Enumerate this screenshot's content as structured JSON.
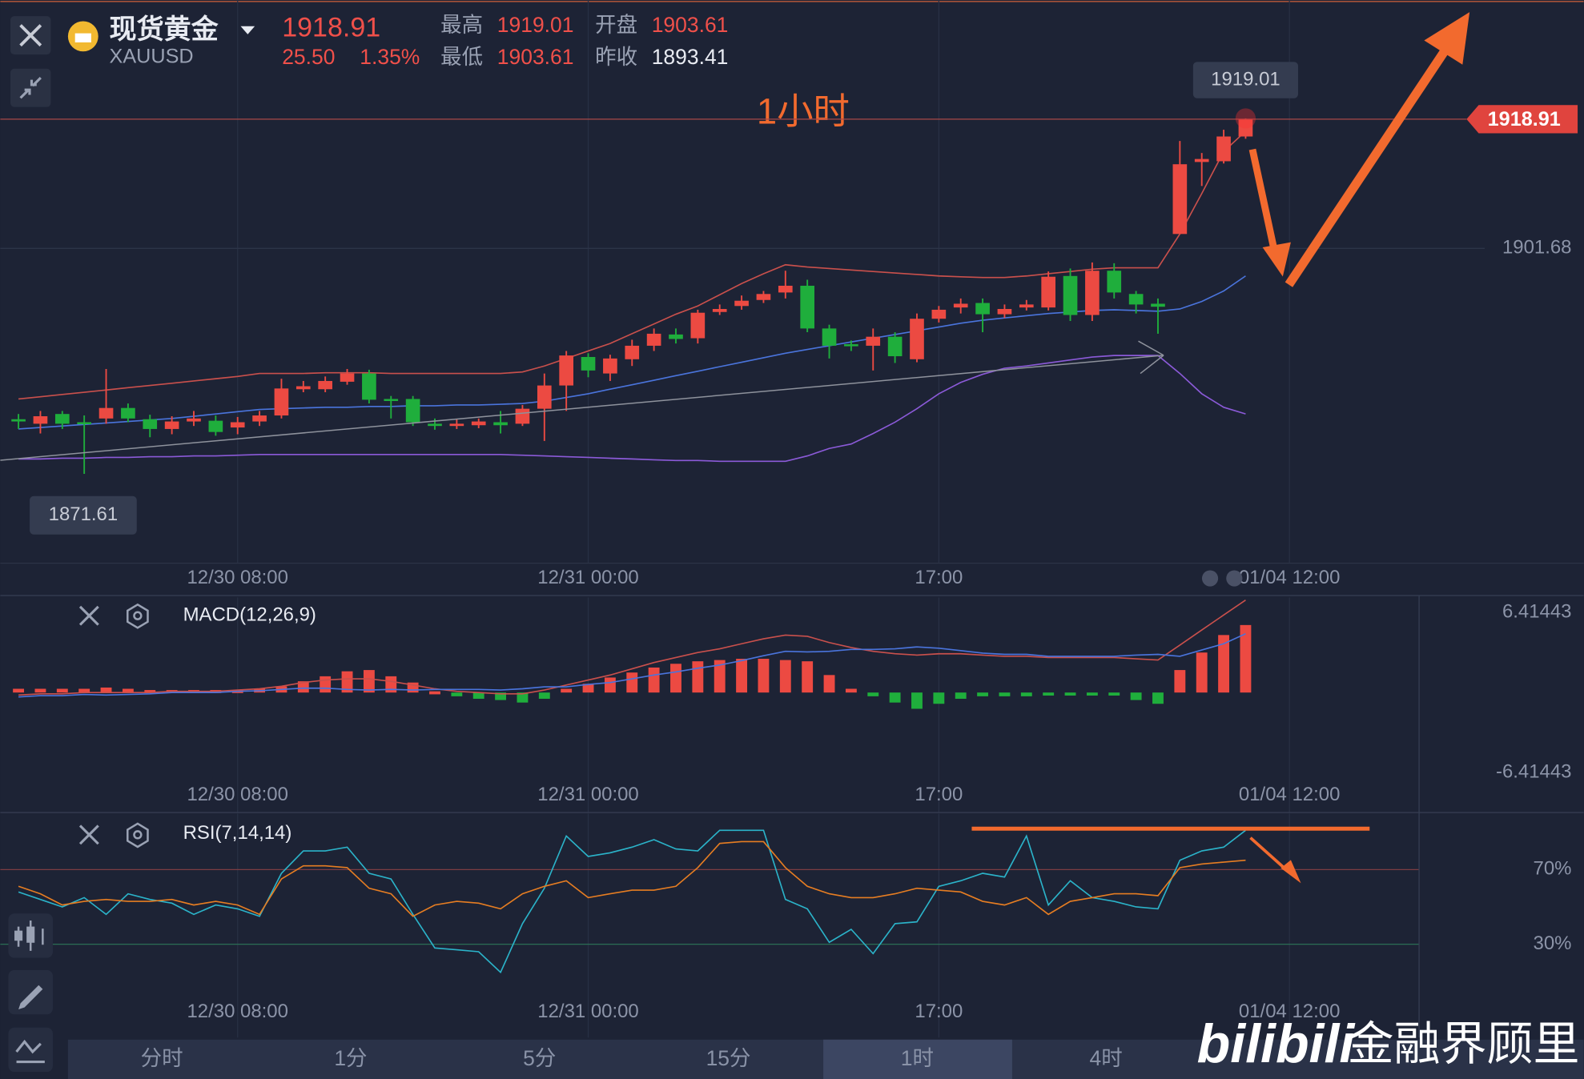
{
  "header": {
    "name": "现货黄金",
    "symbol": "XAUUSD",
    "price": "1918.91",
    "change": "25.50",
    "change_pct": "1.35%",
    "stats": [
      {
        "label": "最高",
        "value": "1919.01"
      },
      {
        "label": "开盘",
        "value": "1903.61"
      },
      {
        "label": "最低",
        "value": "1903.61"
      },
      {
        "label": "昨收",
        "value": "1893.41"
      }
    ]
  },
  "timeframes": [
    "分时",
    "1分",
    "5分",
    "15分",
    "1时",
    "4时"
  ],
  "active_timeframe": "1时",
  "watermark": {
    "logo": "bilibili",
    "text": "金融界顾里"
  },
  "chart_data": [
    {
      "type": "candlestick",
      "title": "1小时",
      "categories": [
        null,
        null,
        null,
        null,
        null,
        null,
        null,
        null,
        null,
        null,
        "12/30 08:00",
        null,
        null,
        null,
        null,
        null,
        null,
        null,
        null,
        null,
        null,
        null,
        null,
        null,
        null,
        null,
        "12/31 00:00",
        null,
        null,
        null,
        null,
        null,
        null,
        null,
        null,
        null,
        null,
        null,
        null,
        null,
        null,
        null,
        "17:00",
        null,
        null,
        null,
        null,
        null,
        null,
        null,
        null,
        null,
        null,
        null,
        null,
        null,
        null,
        null,
        "01/04 12:00",
        null,
        null
      ],
      "open": [
        1878.9,
        1878.3,
        1879.6,
        1878.5,
        1879.0,
        1880.4,
        1878.9,
        1877.6,
        1878.6,
        1878.7,
        1877.8,
        1878.6,
        1879.4,
        1882.9,
        1882.9,
        1883.9,
        1885.0,
        1881.6,
        1881.6,
        1878.3,
        1878.0,
        1878.1,
        1878.5,
        1878.3,
        1880.3,
        1883.4,
        1887.2,
        1885.0,
        1886.9,
        1888.7,
        1890.2,
        1889.7,
        1893.2,
        1894.0,
        1894.8,
        1895.8,
        1896.7,
        1891.0,
        1888.9,
        1888.7,
        1889.9,
        1886.9,
        1892.3,
        1893.8,
        1894.4,
        1892.9,
        1893.8,
        1893.8,
        1898.0,
        1892.8,
        1898.7,
        1895.6,
        1894.3,
        1903.6,
        1913.2,
        1913.3,
        1916.6,
        null,
        null,
        null,
        null
      ],
      "high": [
        1879.6,
        1880.0,
        1880.0,
        1879.4,
        1885.6,
        1881.0,
        1879.5,
        1879.3,
        1880.0,
        1879.4,
        1879.2,
        1880.0,
        1884.3,
        1884.0,
        1884.6,
        1885.6,
        1885.5,
        1882.0,
        1882.0,
        1879.0,
        1878.9,
        1879.0,
        1880.0,
        1880.8,
        1885.0,
        1888.0,
        1887.7,
        1887.5,
        1889.5,
        1891.0,
        1891.0,
        1893.5,
        1894.2,
        1895.4,
        1896.0,
        1898.7,
        1897.5,
        1891.5,
        1889.4,
        1891.0,
        1890.5,
        1893.0,
        1894.0,
        1895.0,
        1895.0,
        1894.2,
        1894.8,
        1898.6,
        1899.0,
        1899.8,
        1899.7,
        1896.0,
        1895.0,
        1916.0,
        1914.4,
        1917.5,
        1919.01,
        null,
        null,
        null,
        null
      ],
      "low": [
        1877.6,
        1877.0,
        1877.6,
        1871.61,
        1878.3,
        1878.5,
        1876.5,
        1876.9,
        1878.0,
        1876.7,
        1876.9,
        1878.0,
        1879.0,
        1882.5,
        1882.5,
        1883.5,
        1881.0,
        1879.0,
        1878.0,
        1877.5,
        1877.6,
        1877.7,
        1877.0,
        1878.0,
        1876.0,
        1880.0,
        1884.5,
        1884.0,
        1886.0,
        1888.0,
        1889.0,
        1889.0,
        1892.8,
        1893.5,
        1894.4,
        1895.0,
        1890.5,
        1887.0,
        1888.0,
        1885.4,
        1886.4,
        1886.5,
        1891.8,
        1893.0,
        1890.5,
        1892.4,
        1893.4,
        1893.4,
        1892.0,
        1892.0,
        1895.0,
        1893.0,
        1890.3,
        1903.6,
        1910.0,
        1913.0,
        1916.3,
        null,
        null,
        null,
        null
      ],
      "close": [
        1878.6,
        1879.3,
        1878.3,
        1878.3,
        1880.4,
        1879.0,
        1877.6,
        1878.6,
        1879.0,
        1877.2,
        1878.5,
        1879.4,
        1883.0,
        1883.3,
        1884.0,
        1885.0,
        1881.5,
        1881.4,
        1878.5,
        1878.0,
        1878.3,
        1878.6,
        1878.1,
        1880.3,
        1883.4,
        1887.4,
        1885.4,
        1887.0,
        1888.7,
        1890.3,
        1889.6,
        1893.1,
        1893.6,
        1894.7,
        1895.6,
        1896.7,
        1891.0,
        1888.7,
        1888.7,
        1889.9,
        1887.3,
        1892.3,
        1893.5,
        1894.3,
        1892.9,
        1893.6,
        1894.2,
        1897.9,
        1892.8,
        1898.7,
        1895.8,
        1894.2,
        1893.9,
        1912.9,
        1913.6,
        1916.6,
        1918.91,
        null,
        null,
        null,
        null
      ],
      "up_color": "#ec4a42",
      "down_color": "#1fae3c",
      "lines": [
        {
          "color": "#c9504c",
          "values": [
            1881.6,
            1881.9,
            1882.2,
            1882.5,
            1882.8,
            1883.1,
            1883.4,
            1883.7,
            1884.0,
            1884.3,
            1884.6,
            1885.0,
            1885.0,
            1885.0,
            1885.1,
            1885.1,
            1885.1,
            1885.0,
            1885.0,
            1885.0,
            1885.0,
            1885.0,
            1885.0,
            1885.2,
            1886.0,
            1887.0,
            1888.0,
            1889.0,
            1890.3,
            1891.6,
            1892.9,
            1894.0,
            1895.5,
            1897.0,
            1898.3,
            1899.5,
            1899.2,
            1899.0,
            1898.8,
            1898.6,
            1898.4,
            1898.2,
            1898.0,
            1897.9,
            1897.8,
            1897.8,
            1898.0,
            1898.3,
            1898.6,
            1898.9,
            1899.1,
            1899.1,
            1899.1,
            1903.6,
            1909.0,
            1914.6,
            1917.3,
            null,
            null,
            null,
            null
          ]
        },
        {
          "color": "#4a74dc",
          "values": [
            1877.6,
            1877.8,
            1878.0,
            1878.2,
            1878.4,
            1878.6,
            1878.8,
            1879.0,
            1879.3,
            1879.6,
            1879.9,
            1880.2,
            1880.3,
            1880.4,
            1880.5,
            1880.5,
            1880.6,
            1880.6,
            1880.7,
            1880.7,
            1880.8,
            1880.8,
            1880.9,
            1881.0,
            1881.3,
            1881.8,
            1882.3,
            1882.9,
            1883.5,
            1884.1,
            1884.7,
            1885.3,
            1885.9,
            1886.5,
            1887.1,
            1887.7,
            1888.2,
            1888.7,
            1889.2,
            1889.7,
            1890.2,
            1890.7,
            1891.2,
            1891.7,
            1892.1,
            1892.4,
            1892.7,
            1893.0,
            1893.2,
            1893.4,
            1893.5,
            1893.4,
            1893.3,
            1893.6,
            1894.6,
            1896.0,
            1898.0,
            null,
            null,
            null,
            null
          ]
        },
        {
          "color": "#8b5ad8",
          "values": [
            1873.6,
            1873.6,
            1873.7,
            1873.7,
            1873.8,
            1873.8,
            1873.9,
            1873.9,
            1874.0,
            1874.0,
            1874.1,
            1874.2,
            1874.2,
            1874.2,
            1874.2,
            1874.2,
            1874.2,
            1874.2,
            1874.2,
            1874.2,
            1874.2,
            1874.2,
            1874.2,
            1874.1,
            1874.0,
            1873.9,
            1873.8,
            1873.7,
            1873.6,
            1873.5,
            1873.4,
            1873.4,
            1873.3,
            1873.3,
            1873.3,
            1873.3,
            1874.0,
            1875.0,
            1875.6,
            1877.0,
            1878.5,
            1880.3,
            1882.3,
            1883.8,
            1884.9,
            1885.7,
            1886.0,
            1886.4,
            1886.8,
            1887.2,
            1887.4,
            1887.4,
            1887.4,
            1885.0,
            1882.3,
            1880.5,
            1879.6,
            null,
            null,
            null,
            null
          ]
        }
      ],
      "ylim": [
        1859.7,
        1934.8
      ],
      "yticks": [
        1901.68
      ],
      "grid": true
    },
    {
      "type": "macd",
      "title": "MACD(12,26,9)",
      "categories": [
        null,
        null,
        null,
        null,
        null,
        null,
        null,
        null,
        null,
        null,
        "12/30 08:00",
        null,
        null,
        null,
        null,
        null,
        null,
        null,
        null,
        null,
        null,
        null,
        null,
        null,
        null,
        null,
        "12/31 00:00",
        null,
        null,
        null,
        null,
        null,
        null,
        null,
        null,
        null,
        null,
        null,
        null,
        null,
        null,
        null,
        "17:00",
        null,
        null,
        null,
        null,
        null,
        null,
        null,
        null,
        null,
        null,
        null,
        null,
        null,
        null,
        null,
        "01/04 12:00",
        null,
        null
      ],
      "histogram": [
        0.3,
        0.3,
        0.3,
        0.3,
        0.4,
        0.3,
        0.2,
        0.2,
        0.2,
        0.2,
        0.2,
        0.3,
        0.5,
        0.9,
        1.3,
        1.7,
        1.8,
        1.3,
        0.8,
        0.1,
        -0.3,
        -0.5,
        -0.6,
        -0.8,
        -0.5,
        0.3,
        0.7,
        1.2,
        1.6,
        2.0,
        2.3,
        2.5,
        2.6,
        2.7,
        2.7,
        2.6,
        2.5,
        1.4,
        0.3,
        -0.3,
        -0.8,
        -1.3,
        -0.9,
        -0.5,
        -0.3,
        -0.3,
        -0.3,
        -0.2,
        -0.2,
        -0.2,
        -0.2,
        -0.6,
        -0.9,
        1.8,
        3.2,
        4.6,
        5.4,
        null,
        null,
        null,
        null
      ],
      "up_color": "#ec4a42",
      "down_color": "#1fae3c",
      "lines": [
        {
          "color": "#c9504c",
          "values": [
            -0.2,
            -0.1,
            -0.1,
            0.0,
            0.0,
            0.0,
            0.0,
            0.1,
            0.1,
            0.1,
            0.2,
            0.3,
            0.5,
            0.8,
            1.0,
            1.1,
            1.1,
            0.9,
            0.6,
            0.3,
            0.1,
            0.0,
            -0.1,
            -0.1,
            0.2,
            0.6,
            1.0,
            1.4,
            1.9,
            2.4,
            2.8,
            3.2,
            3.5,
            3.9,
            4.3,
            4.6,
            4.5,
            4.0,
            3.6,
            3.3,
            3.1,
            3.0,
            3.1,
            3.1,
            3.0,
            2.9,
            2.9,
            2.8,
            2.8,
            2.8,
            2.8,
            2.7,
            2.6,
            3.8,
            5.0,
            6.2,
            7.4,
            null,
            null,
            null,
            null
          ]
        },
        {
          "color": "#4a74dc",
          "values": [
            -0.35,
            -0.25,
            -0.25,
            -0.15,
            -0.2,
            -0.15,
            -0.1,
            0.0,
            0.0,
            0.0,
            0.1,
            0.15,
            0.25,
            0.35,
            0.35,
            0.25,
            0.2,
            0.25,
            0.2,
            0.25,
            0.25,
            0.25,
            0.2,
            0.3,
            0.45,
            0.45,
            0.65,
            0.8,
            1.1,
            1.4,
            1.65,
            1.95,
            2.2,
            2.55,
            2.95,
            3.3,
            3.25,
            3.3,
            3.45,
            3.45,
            3.5,
            3.65,
            3.55,
            3.35,
            3.15,
            3.05,
            3.05,
            2.9,
            2.9,
            2.9,
            2.9,
            3.0,
            3.05,
            2.9,
            3.4,
            3.9,
            4.7,
            null,
            null,
            null,
            null
          ]
        }
      ],
      "ylim": [
        -9.6,
        7.6
      ],
      "yticks": [
        6.41443,
        -6.41443
      ],
      "grid": false
    },
    {
      "type": "line",
      "title": "RSI(7,14,14)",
      "categories": [
        null,
        null,
        null,
        null,
        null,
        null,
        null,
        null,
        null,
        null,
        "12/30 08:00",
        null,
        null,
        null,
        null,
        null,
        null,
        null,
        null,
        null,
        null,
        null,
        null,
        null,
        null,
        null,
        "12/31 00:00",
        null,
        null,
        null,
        null,
        null,
        null,
        null,
        null,
        null,
        null,
        null,
        null,
        null,
        null,
        null,
        "17:00",
        null,
        null,
        null,
        null,
        null,
        null,
        null,
        null,
        null,
        null,
        null,
        null,
        null,
        null,
        null,
        "01/04 12:00",
        null,
        null
      ],
      "lines": [
        {
          "color": "#2bb3c9",
          "values": [
            58,
            54,
            50,
            55,
            46,
            57,
            54,
            52,
            46,
            51,
            49,
            45,
            68,
            80,
            80,
            82,
            68,
            65,
            46,
            28,
            27,
            26,
            15,
            41,
            60,
            88,
            77,
            79,
            82,
            86,
            81,
            80,
            91,
            91,
            91,
            54,
            49,
            31,
            38,
            25,
            41,
            42,
            61,
            64,
            68,
            66,
            88,
            51,
            64,
            55,
            53,
            50,
            49,
            75,
            80,
            82,
            91,
            null,
            null,
            null,
            null
          ]
        },
        {
          "color": "#e67d22",
          "values": [
            61,
            57,
            51,
            53,
            54,
            53,
            53,
            54,
            51,
            53,
            51,
            46,
            65,
            72,
            72,
            71,
            60,
            57,
            45,
            51,
            53,
            52,
            49,
            57,
            61,
            64,
            55,
            57,
            59,
            59,
            61,
            71,
            84,
            85,
            85,
            71,
            61,
            57,
            55,
            55,
            57,
            60,
            59,
            58,
            53,
            51,
            55,
            46,
            53,
            55,
            57,
            57,
            56,
            71,
            73,
            74,
            75,
            null,
            null,
            null,
            null
          ]
        }
      ],
      "ylim": [
        -20,
        100
      ],
      "yticks": [
        {
          "value": 70,
          "label": "70%"
        },
        {
          "value": 30,
          "label": "30%"
        }
      ],
      "grid": true,
      "grid_colors": [
        "#7c3d42",
        "#2b6e55"
      ]
    }
  ]
}
